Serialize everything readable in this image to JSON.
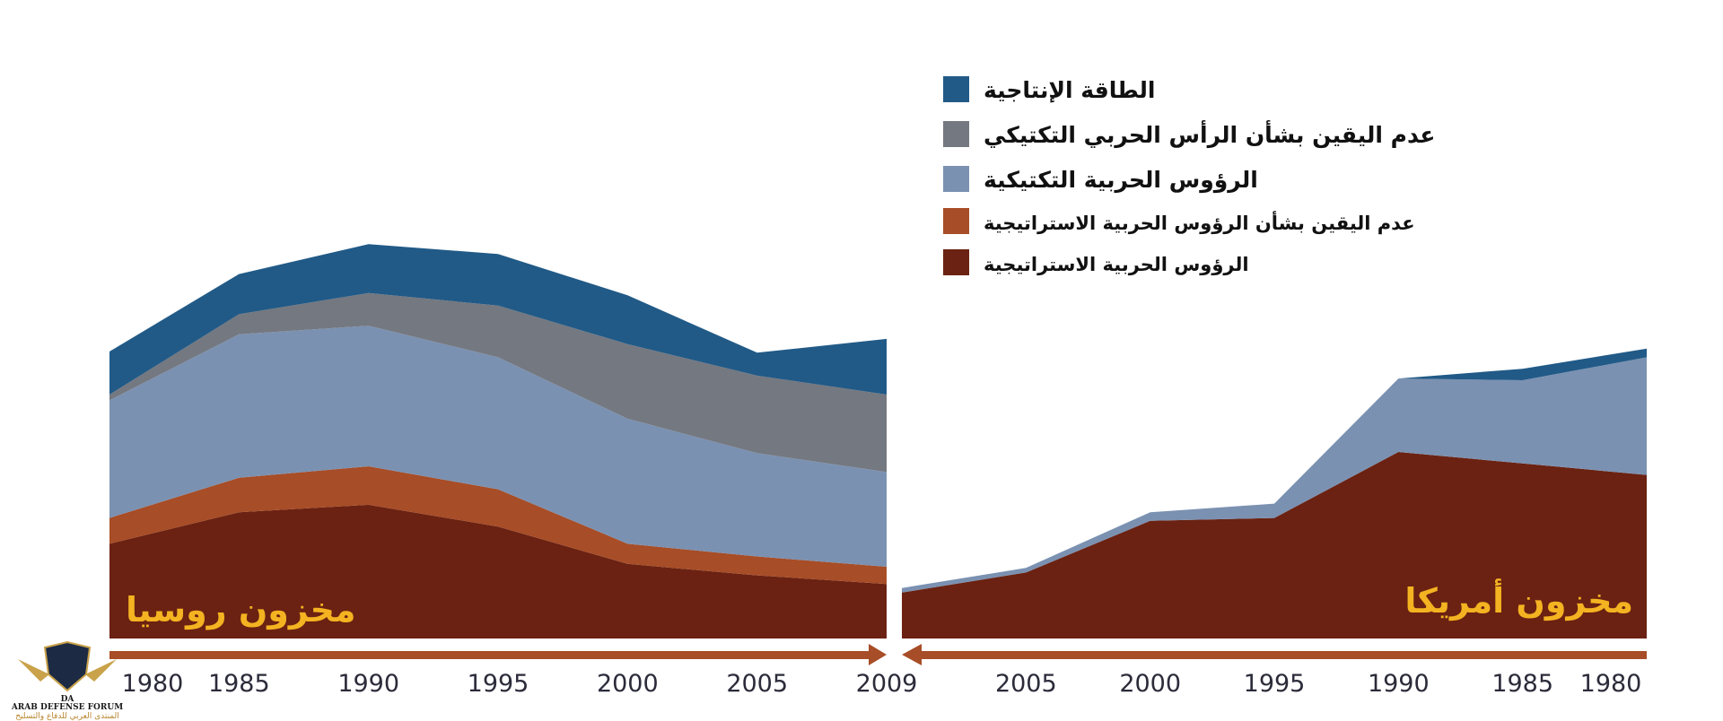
{
  "chart_data": [
    {
      "type": "area",
      "stacked": true,
      "title": "مخزون روسيا",
      "x": [
        1980,
        1985,
        1990,
        1995,
        2000,
        2005,
        2009
      ],
      "series": [
        {
          "name": "الرؤوس الحربية الاستراتيجية",
          "color": "#6b2212",
          "values": [
            165,
            220,
            233,
            195,
            130,
            110,
            95
          ]
        },
        {
          "name": "عدم اليقين بشأن الرؤوس الحربية الاستراتيجية",
          "color": "#a74d27",
          "values": [
            45,
            60,
            67,
            65,
            35,
            33,
            30
          ]
        },
        {
          "name": "الرؤوس الحربية التكتيكية",
          "color": "#7b91b1",
          "values": [
            205,
            250,
            245,
            230,
            218,
            180,
            165
          ]
        },
        {
          "name": "عدم اليقين بشأن الرأس الحربي التكتيكي",
          "color": "#747880",
          "values": [
            10,
            35,
            57,
            90,
            130,
            135,
            135
          ]
        },
        {
          "name": "الطاقة الإنتاجية",
          "color": "#215a87",
          "values": [
            75,
            70,
            85,
            90,
            85,
            40,
            97
          ]
        }
      ]
    },
    {
      "type": "area",
      "stacked": true,
      "title": "مخزون أمريكا",
      "x": [
        2009,
        2005,
        2000,
        1995,
        1990,
        1985,
        1980
      ],
      "series": [
        {
          "name": "الرؤوس الحربية الاستراتيجية",
          "color": "#6b2212",
          "values": [
            80,
            115,
            205,
            210,
            325,
            305,
            285
          ]
        },
        {
          "name": "الرؤوس الحربية التكتيكية",
          "color": "#7b91b1",
          "values": [
            8,
            8,
            15,
            25,
            128,
            145,
            205
          ]
        },
        {
          "name": "الطاقة الإنتاجية",
          "color": "#215a87",
          "values": [
            0,
            0,
            0,
            0,
            0,
            20,
            15
          ]
        }
      ]
    }
  ],
  "legend": [
    {
      "label": "الطاقة الإنتاجية",
      "color": "#215a87"
    },
    {
      "label": "عدم اليقين بشأن الرأس الحربي التكتيكي",
      "color": "#747880"
    },
    {
      "label": "الرؤوس الحربية التكتيكية",
      "color": "#7b91b1"
    },
    {
      "label": "عدم اليقين بشأن الرؤوس الحربية الاستراتيجية",
      "color": "#a74d27"
    },
    {
      "label": "الرؤوس الحربية الاستراتيجية",
      "color": "#6b2212"
    }
  ],
  "arrow_color": "#a74d27",
  "logo": {
    "line1": "ARAB DEFENSE FORUM",
    "line2": "المنتدى العربي للدفاع والتسليح"
  }
}
